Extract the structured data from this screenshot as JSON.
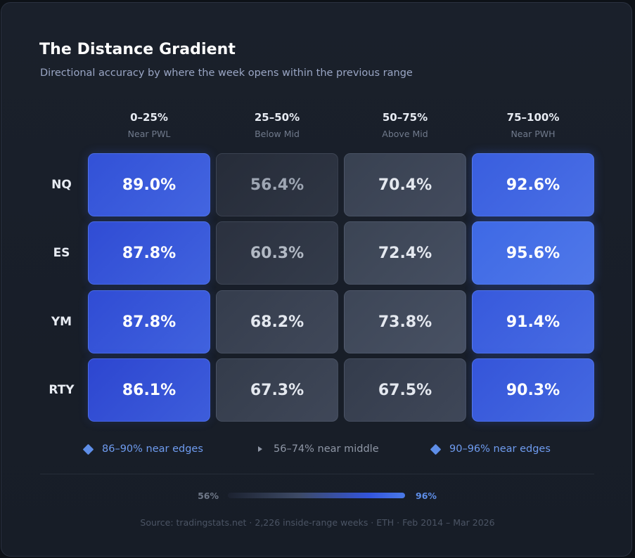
{
  "chart_data": {
    "type": "heatmap",
    "title": "The Distance Gradient",
    "subtitle": "Directional accuracy by where the week opens within the previous range",
    "columns": [
      {
        "range": "0–25%",
        "label": "Near PWL"
      },
      {
        "range": "25–50%",
        "label": "Below Mid"
      },
      {
        "range": "50–75%",
        "label": "Above Mid"
      },
      {
        "range": "75–100%",
        "label": "Near PWH"
      }
    ],
    "rows": [
      "NQ",
      "ES",
      "YM",
      "RTY"
    ],
    "values": [
      [
        89.0,
        56.4,
        70.4,
        92.6
      ],
      [
        87.8,
        60.3,
        72.4,
        95.6
      ],
      [
        87.8,
        68.2,
        73.8,
        91.4
      ],
      [
        86.1,
        67.3,
        67.5,
        90.3
      ]
    ],
    "value_suffix": "%",
    "legend": [
      {
        "marker": "diamond",
        "text": "86–90% near edges",
        "color": "#5e8ee8"
      },
      {
        "marker": "triangle",
        "text": "56–74% near middle",
        "color": "#8f97a6"
      },
      {
        "marker": "diamond",
        "text": "90–96% near edges",
        "color": "#5e8ee8"
      }
    ],
    "scale": {
      "min_label": "56%",
      "max_label": "96%",
      "min": 56,
      "max": 96
    },
    "colors": {
      "edge_low": "#2d46d0",
      "edge_high": "#3f6ae6",
      "mid_dark": "#252b38",
      "mid_light": "#3d4657",
      "text_bright": "#ffffff",
      "text_dim": "#9ea6b3"
    }
  },
  "source": "Source: tradingstats.net · 2,226 inside-range weeks · ETH · Feb 2014 – Mar 2026"
}
